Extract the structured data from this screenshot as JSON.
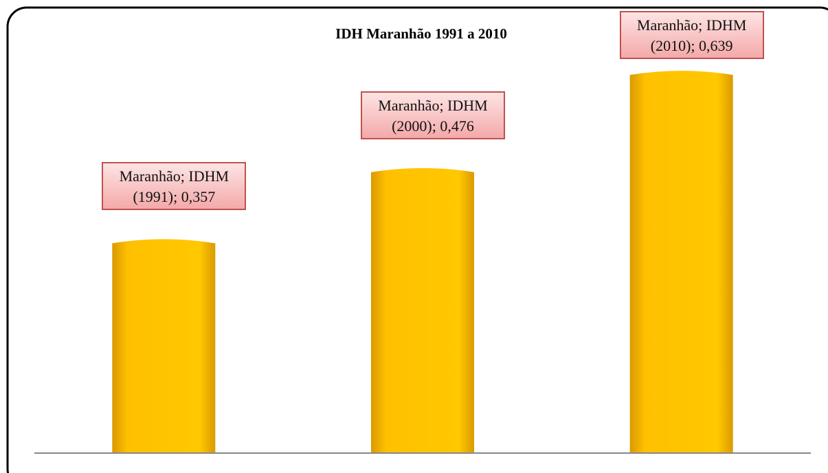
{
  "chart_data": {
    "type": "bar",
    "title": "IDH Maranhão 1991 a 2010",
    "values": [
      0.357,
      0.476,
      0.639
    ],
    "value_labels": [
      "Maranhão; IDHM\n(1991); 0,357",
      "Maranhão; IDHM\n(2000); 0,476",
      "Maranhão; IDHM\n(2010); 0,639"
    ],
    "color": "#FFC000",
    "ylim": [
      0,
      0.7
    ]
  }
}
